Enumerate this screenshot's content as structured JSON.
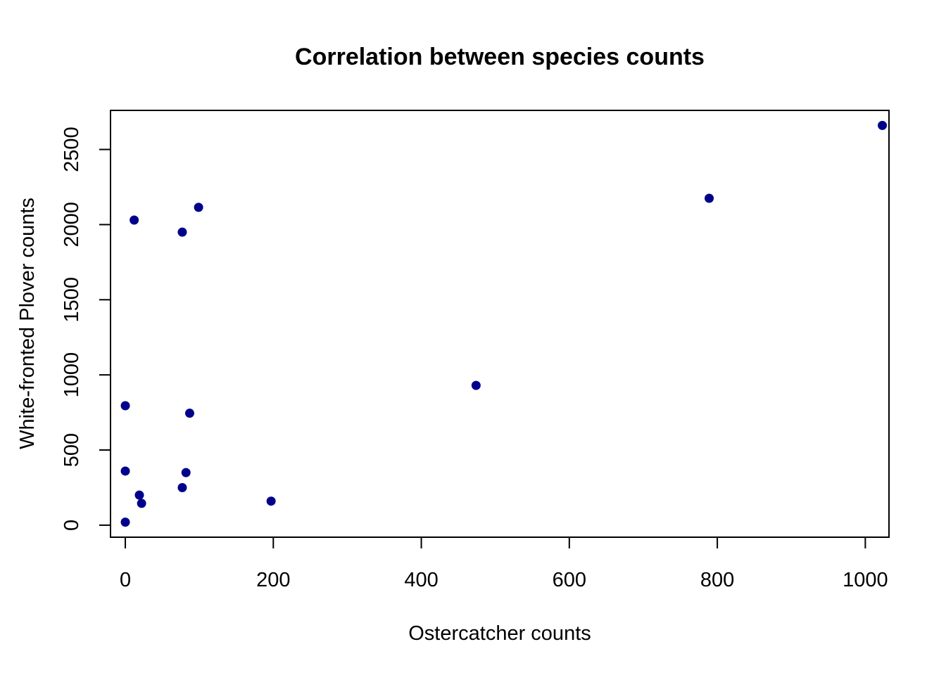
{
  "chart_data": {
    "type": "scatter",
    "title": "Correlation between species counts",
    "xlabel": "Ostercatcher counts",
    "ylabel": "White-fronted Plover counts",
    "xlim": [
      -20,
      1032
    ],
    "ylim": [
      -80,
      2760
    ],
    "x_ticks": [
      0,
      200,
      400,
      600,
      800,
      1000
    ],
    "y_ticks": [
      0,
      500,
      1000,
      1500,
      2000,
      2500
    ],
    "grid": false,
    "point_color": "#00008B",
    "points": [
      {
        "x": 0,
        "y": 20
      },
      {
        "x": 0,
        "y": 360
      },
      {
        "x": 0,
        "y": 795
      },
      {
        "x": 12,
        "y": 2030
      },
      {
        "x": 19,
        "y": 200
      },
      {
        "x": 22,
        "y": 145
      },
      {
        "x": 77,
        "y": 250
      },
      {
        "x": 77,
        "y": 1950
      },
      {
        "x": 82,
        "y": 350
      },
      {
        "x": 87,
        "y": 745
      },
      {
        "x": 99,
        "y": 2115
      },
      {
        "x": 197,
        "y": 160
      },
      {
        "x": 474,
        "y": 930
      },
      {
        "x": 789,
        "y": 2175
      },
      {
        "x": 1023,
        "y": 2660
      }
    ]
  }
}
